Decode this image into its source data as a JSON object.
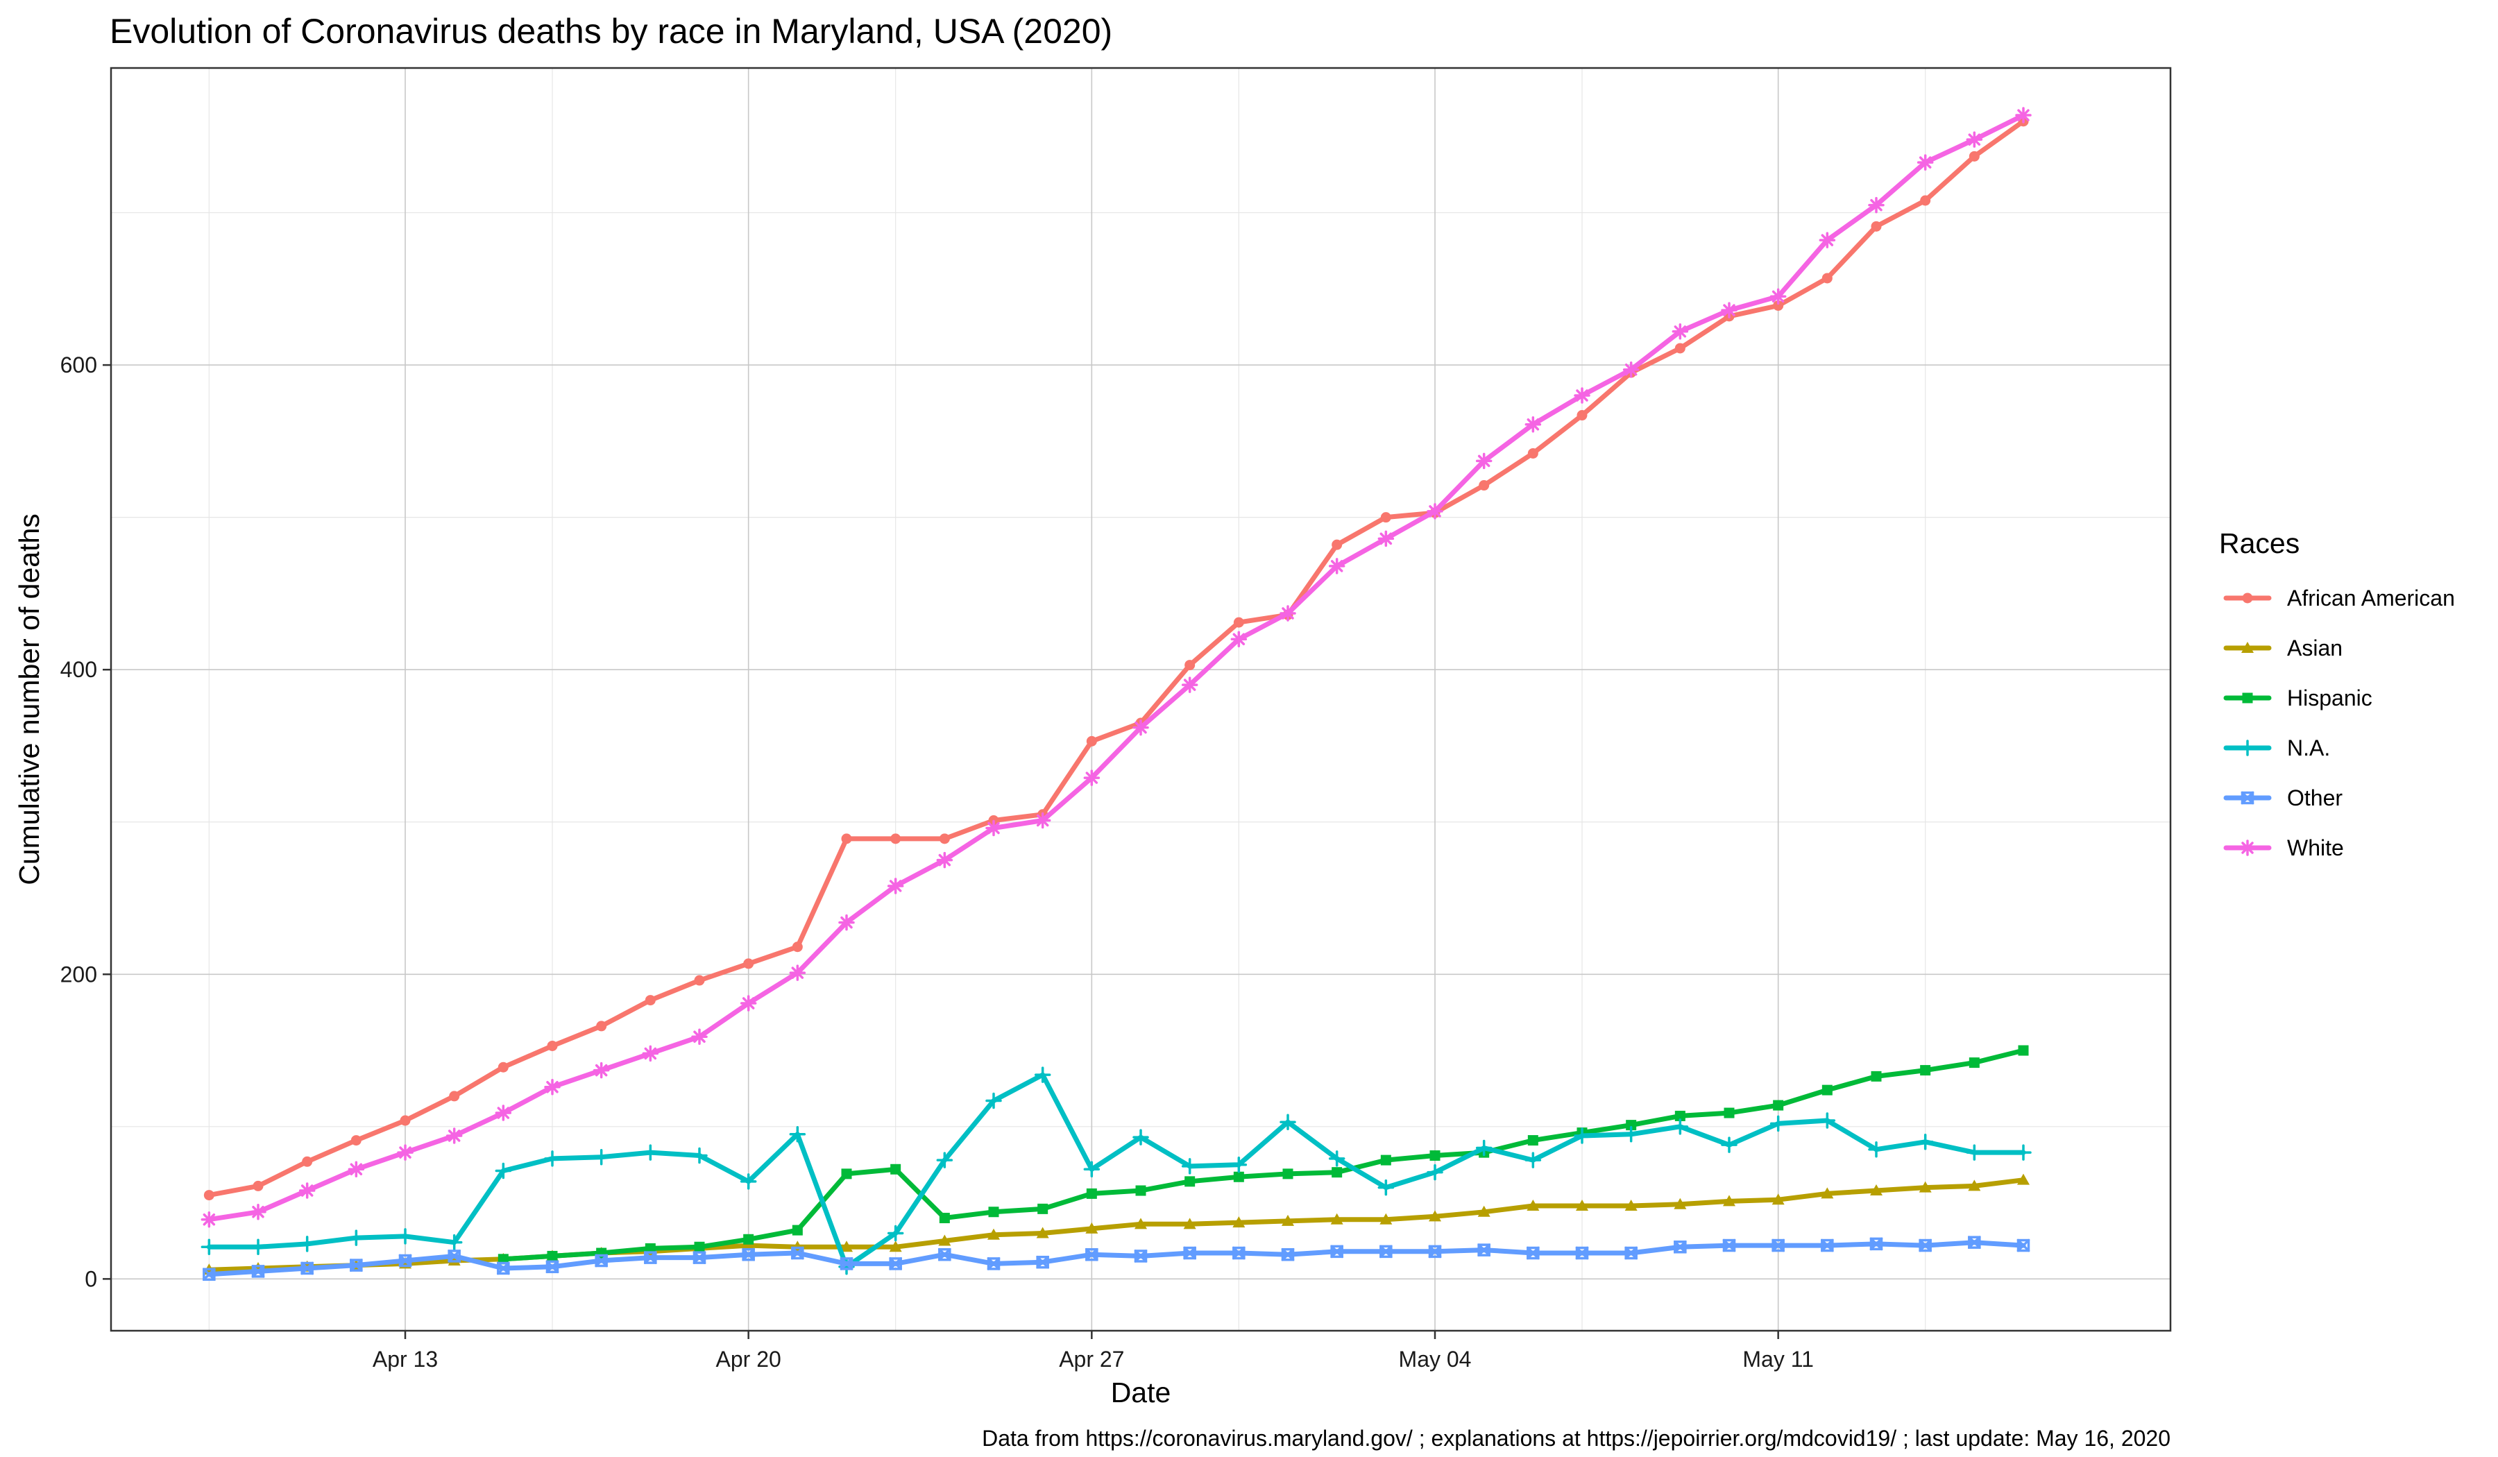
{
  "chart_data": {
    "type": "line",
    "title": "Evolution of Coronavirus deaths by race in Maryland, USA (2020)",
    "xlabel": "Date",
    "ylabel": "Cumulative number of deaths",
    "caption": "Data from https://coronavirus.maryland.gov/ ; explanations at https://jepoirrier.org/mdcovid19/ ; last update: May 16, 2020",
    "legend_title": "Races",
    "legend_position": "right",
    "grid": true,
    "x_start_date": "2020-04-09",
    "x_range": [
      "2020-04-07",
      "2020-05-19"
    ],
    "x_ticks": [
      {
        "date": "2020-04-13",
        "label": "Apr 13"
      },
      {
        "date": "2020-04-20",
        "label": "Apr 20"
      },
      {
        "date": "2020-04-27",
        "label": "Apr 27"
      },
      {
        "date": "2020-05-04",
        "label": "May 04"
      },
      {
        "date": "2020-05-11",
        "label": "May 11"
      }
    ],
    "ylim": [
      -34,
      795
    ],
    "y_ticks": [
      0,
      200,
      400,
      600
    ],
    "x": [
      "2020-04-09",
      "2020-04-10",
      "2020-04-11",
      "2020-04-12",
      "2020-04-13",
      "2020-04-14",
      "2020-04-15",
      "2020-04-16",
      "2020-04-17",
      "2020-04-18",
      "2020-04-19",
      "2020-04-20",
      "2020-04-21",
      "2020-04-22",
      "2020-04-23",
      "2020-04-24",
      "2020-04-25",
      "2020-04-26",
      "2020-04-27",
      "2020-04-28",
      "2020-04-29",
      "2020-04-30",
      "2020-05-01",
      "2020-05-02",
      "2020-05-03",
      "2020-05-04",
      "2020-05-05",
      "2020-05-06",
      "2020-05-07",
      "2020-05-08",
      "2020-05-09",
      "2020-05-10",
      "2020-05-11",
      "2020-05-12",
      "2020-05-13",
      "2020-05-14",
      "2020-05-15",
      "2020-05-16"
    ],
    "series": [
      {
        "name": "African American",
        "color": "#F8766D",
        "marker": "circle",
        "values": [
          55,
          61,
          77,
          91,
          104,
          120,
          139,
          153,
          166,
          183,
          196,
          207,
          218,
          289,
          289,
          289,
          301,
          305,
          353,
          365,
          403,
          431,
          436,
          482,
          500,
          503,
          521,
          542,
          567,
          595,
          611,
          632,
          639,
          657,
          691,
          708,
          737,
          760
        ]
      },
      {
        "name": "Asian",
        "color": "#B79F00",
        "marker": "triangle",
        "values": [
          6,
          7,
          8,
          9,
          10,
          12,
          13,
          15,
          17,
          18,
          20,
          22,
          21,
          21,
          21,
          25,
          29,
          30,
          33,
          36,
          36,
          37,
          38,
          39,
          39,
          41,
          44,
          48,
          48,
          48,
          49,
          51,
          52,
          56,
          58,
          60,
          61,
          65
        ]
      },
      {
        "name": "Hispanic",
        "color": "#00BA38",
        "marker": "square",
        "values": [
          null,
          null,
          null,
          null,
          null,
          null,
          13,
          15,
          17,
          20,
          21,
          26,
          32,
          69,
          72,
          40,
          44,
          46,
          56,
          58,
          64,
          67,
          69,
          70,
          78,
          81,
          83,
          91,
          96,
          101,
          107,
          109,
          114,
          124,
          133,
          137,
          142,
          150
        ]
      },
      {
        "name": "N.A.",
        "color": "#00BFC4",
        "marker": "plus",
        "values": [
          21,
          21,
          23,
          27,
          28,
          24,
          71,
          79,
          80,
          83,
          81,
          64,
          95,
          8,
          30,
          78,
          117,
          134,
          72,
          93,
          74,
          75,
          103,
          79,
          60,
          70,
          86,
          78,
          94,
          95,
          100,
          88,
          102,
          104,
          85,
          90,
          83,
          83
        ]
      },
      {
        "name": "Other",
        "color": "#619CFF",
        "marker": "square-x",
        "values": [
          3,
          5,
          7,
          9,
          12,
          15,
          7,
          8,
          12,
          14,
          14,
          16,
          17,
          10,
          10,
          16,
          10,
          11,
          16,
          15,
          17,
          17,
          16,
          18,
          18,
          18,
          19,
          17,
          17,
          17,
          21,
          22,
          22,
          22,
          23,
          22,
          24,
          22
        ]
      },
      {
        "name": "White",
        "color": "#F564E3",
        "marker": "asterisk",
        "values": [
          39,
          44,
          58,
          72,
          83,
          94,
          109,
          126,
          137,
          148,
          159,
          181,
          201,
          234,
          258,
          275,
          296,
          301,
          329,
          362,
          390,
          420,
          437,
          468,
          486,
          504,
          537,
          561,
          580,
          597,
          622,
          636,
          645,
          682,
          705,
          733,
          748,
          764
        ]
      }
    ]
  }
}
